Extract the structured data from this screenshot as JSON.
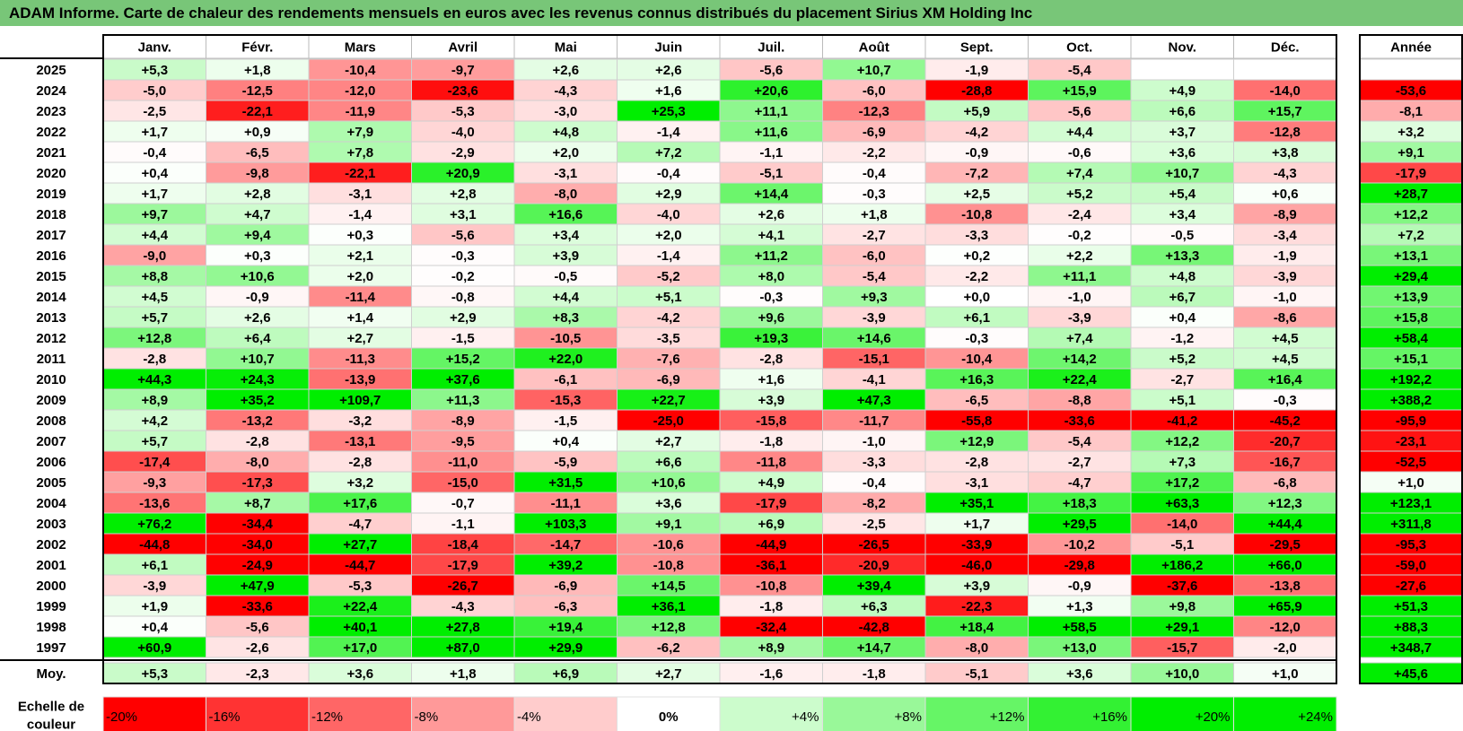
{
  "title": "ADAM Informe. Carte de chaleur des rendements mensuels en euros avec les revenus connus distribués du placement Sirius XM Holding Inc",
  "chart_data": {
    "type": "heatmap",
    "columns": [
      "Janv.",
      "Févr.",
      "Mars",
      "Avril",
      "Mai",
      "Juin",
      "Juil.",
      "Août",
      "Sept.",
      "Oct.",
      "Nov.",
      "Déc."
    ],
    "year_header": "Année",
    "rows": [
      {
        "year": "2025",
        "values": [
          "+5,3",
          "+1,8",
          "-10,4",
          "-9,7",
          "+2,6",
          "+2,6",
          "-5,6",
          "+10,7",
          "-1,9",
          "-5,4",
          "",
          ""
        ],
        "annual": ""
      },
      {
        "year": "2024",
        "values": [
          "-5,0",
          "-12,5",
          "-12,0",
          "-23,6",
          "-4,3",
          "+1,6",
          "+20,6",
          "-6,0",
          "-28,8",
          "+15,9",
          "+4,9",
          "-14,0"
        ],
        "annual": "-53,6"
      },
      {
        "year": "2023",
        "values": [
          "-2,5",
          "-22,1",
          "-11,9",
          "-5,3",
          "-3,0",
          "+25,3",
          "+11,1",
          "-12,3",
          "+5,9",
          "-5,6",
          "+6,6",
          "+15,7"
        ],
        "annual": "-8,1"
      },
      {
        "year": "2022",
        "values": [
          "+1,7",
          "+0,9",
          "+7,9",
          "-4,0",
          "+4,8",
          "-1,4",
          "+11,6",
          "-6,9",
          "-4,2",
          "+4,4",
          "+3,7",
          "-12,8"
        ],
        "annual": "+3,2"
      },
      {
        "year": "2021",
        "values": [
          "-0,4",
          "-6,5",
          "+7,8",
          "-2,9",
          "+2,0",
          "+7,2",
          "-1,1",
          "-2,2",
          "-0,9",
          "-0,6",
          "+3,6",
          "+3,8"
        ],
        "annual": "+9,1"
      },
      {
        "year": "2020",
        "values": [
          "+0,4",
          "-9,8",
          "-22,1",
          "+20,9",
          "-3,1",
          "-0,4",
          "-5,1",
          "-0,4",
          "-7,2",
          "+7,4",
          "+10,7",
          "-4,3"
        ],
        "annual": "-17,9"
      },
      {
        "year": "2019",
        "values": [
          "+1,7",
          "+2,8",
          "-3,1",
          "+2,8",
          "-8,0",
          "+2,9",
          "+14,4",
          "-0,3",
          "+2,5",
          "+5,2",
          "+5,4",
          "+0,6"
        ],
        "annual": "+28,7"
      },
      {
        "year": "2018",
        "values": [
          "+9,7",
          "+4,7",
          "-1,4",
          "+3,1",
          "+16,6",
          "-4,0",
          "+2,6",
          "+1,8",
          "-10,8",
          "-2,4",
          "+3,4",
          "-8,9"
        ],
        "annual": "+12,2"
      },
      {
        "year": "2017",
        "values": [
          "+4,4",
          "+9,4",
          "+0,3",
          "-5,6",
          "+3,4",
          "+2,0",
          "+4,1",
          "-2,7",
          "-3,3",
          "-0,2",
          "-0,5",
          "-3,4"
        ],
        "annual": "+7,2"
      },
      {
        "year": "2016",
        "values": [
          "-9,0",
          "+0,3",
          "+2,1",
          "-0,3",
          "+3,9",
          "-1,4",
          "+11,2",
          "-6,0",
          "+0,2",
          "+2,2",
          "+13,3",
          "-1,9"
        ],
        "annual": "+13,1"
      },
      {
        "year": "2015",
        "values": [
          "+8,8",
          "+10,6",
          "+2,0",
          "-0,2",
          "-0,5",
          "-5,2",
          "+8,0",
          "-5,4",
          "-2,2",
          "+11,1",
          "+4,8",
          "-3,9"
        ],
        "annual": "+29,4"
      },
      {
        "year": "2014",
        "values": [
          "+4,5",
          "-0,9",
          "-11,4",
          "-0,8",
          "+4,4",
          "+5,1",
          "-0,3",
          "+9,3",
          "+0,0",
          "-1,0",
          "+6,7",
          "-1,0"
        ],
        "annual": "+13,9"
      },
      {
        "year": "2013",
        "values": [
          "+5,7",
          "+2,6",
          "+1,4",
          "+2,9",
          "+8,3",
          "-4,2",
          "+9,6",
          "-3,9",
          "+6,1",
          "-3,9",
          "+0,4",
          "-8,6"
        ],
        "annual": "+15,8"
      },
      {
        "year": "2012",
        "values": [
          "+12,8",
          "+6,4",
          "+2,7",
          "-1,5",
          "-10,5",
          "-3,5",
          "+19,3",
          "+14,6",
          "-0,3",
          "+7,4",
          "-1,2",
          "+4,5"
        ],
        "annual": "+58,4"
      },
      {
        "year": "2011",
        "values": [
          "-2,8",
          "+10,7",
          "-11,3",
          "+15,2",
          "+22,0",
          "-7,6",
          "-2,8",
          "-15,1",
          "-10,4",
          "+14,2",
          "+5,2",
          "+4,5"
        ],
        "annual": "+15,1"
      },
      {
        "year": "2010",
        "values": [
          "+44,3",
          "+24,3",
          "-13,9",
          "+37,6",
          "-6,1",
          "-6,9",
          "+1,6",
          "-4,1",
          "+16,3",
          "+22,4",
          "-2,7",
          "+16,4"
        ],
        "annual": "+192,2"
      },
      {
        "year": "2009",
        "values": [
          "+8,9",
          "+35,2",
          "+109,7",
          "+11,3",
          "-15,3",
          "+22,7",
          "+3,9",
          "+47,3",
          "-6,5",
          "-8,8",
          "+5,1",
          "-0,3"
        ],
        "annual": "+388,2"
      },
      {
        "year": "2008",
        "values": [
          "+4,2",
          "-13,2",
          "-3,2",
          "-8,9",
          "-1,5",
          "-25,0",
          "-15,8",
          "-11,7",
          "-55,8",
          "-33,6",
          "-41,2",
          "-45,2"
        ],
        "annual": "-95,9"
      },
      {
        "year": "2007",
        "values": [
          "+5,7",
          "-2,8",
          "-13,1",
          "-9,5",
          "+0,4",
          "+2,7",
          "-1,8",
          "-1,0",
          "+12,9",
          "-5,4",
          "+12,2",
          "-20,7"
        ],
        "annual": "-23,1"
      },
      {
        "year": "2006",
        "values": [
          "-17,4",
          "-8,0",
          "-2,8",
          "-11,0",
          "-5,9",
          "+6,6",
          "-11,8",
          "-3,3",
          "-2,8",
          "-2,7",
          "+7,3",
          "-16,7"
        ],
        "annual": "-52,5"
      },
      {
        "year": "2005",
        "values": [
          "-9,3",
          "-17,3",
          "+3,2",
          "-15,0",
          "+31,5",
          "+10,6",
          "+4,9",
          "-0,4",
          "-3,1",
          "-4,7",
          "+17,2",
          "-6,8"
        ],
        "annual": "+1,0"
      },
      {
        "year": "2004",
        "values": [
          "-13,6",
          "+8,7",
          "+17,6",
          "-0,7",
          "-11,1",
          "+3,6",
          "-17,9",
          "-8,2",
          "+35,1",
          "+18,3",
          "+63,3",
          "+12,3"
        ],
        "annual": "+123,1"
      },
      {
        "year": "2003",
        "values": [
          "+76,2",
          "-34,4",
          "-4,7",
          "-1,1",
          "+103,3",
          "+9,1",
          "+6,9",
          "-2,5",
          "+1,7",
          "+29,5",
          "-14,0",
          "+44,4"
        ],
        "annual": "+311,8"
      },
      {
        "year": "2002",
        "values": [
          "-44,8",
          "-34,0",
          "+27,7",
          "-18,4",
          "-14,7",
          "-10,6",
          "-44,9",
          "-26,5",
          "-33,9",
          "-10,2",
          "-5,1",
          "-29,5"
        ],
        "annual": "-95,3"
      },
      {
        "year": "2001",
        "values": [
          "+6,1",
          "-24,9",
          "-44,7",
          "-17,9",
          "+39,2",
          "-10,8",
          "-36,1",
          "-20,9",
          "-46,0",
          "-29,8",
          "+186,2",
          "+66,0"
        ],
        "annual": "-59,0"
      },
      {
        "year": "2000",
        "values": [
          "-3,9",
          "+47,9",
          "-5,3",
          "-26,7",
          "-6,9",
          "+14,5",
          "-10,8",
          "+39,4",
          "+3,9",
          "-0,9",
          "-37,6",
          "-13,8"
        ],
        "annual": "-27,6"
      },
      {
        "year": "1999",
        "values": [
          "+1,9",
          "-33,6",
          "+22,4",
          "-4,3",
          "-6,3",
          "+36,1",
          "-1,8",
          "+6,3",
          "-22,3",
          "+1,3",
          "+9,8",
          "+65,9"
        ],
        "annual": "+51,3"
      },
      {
        "year": "1998",
        "values": [
          "+0,4",
          "-5,6",
          "+40,1",
          "+27,8",
          "+19,4",
          "+12,8",
          "-32,4",
          "-42,8",
          "+18,4",
          "+58,5",
          "+29,1",
          "-12,0"
        ],
        "annual": "+88,3"
      },
      {
        "year": "1997",
        "values": [
          "+60,9",
          "-2,6",
          "+17,0",
          "+87,0",
          "+29,9",
          "-6,2",
          "+8,9",
          "+14,7",
          "-8,0",
          "+13,0",
          "-15,7",
          "-2,0"
        ],
        "annual": "+348,7"
      }
    ],
    "average": {
      "label": "Moy.",
      "values": [
        "+5,3",
        "-2,3",
        "+3,6",
        "+1,8",
        "+6,9",
        "+2,7",
        "-1,6",
        "-1,8",
        "-5,1",
        "+3,6",
        "+10,0",
        "+1,0"
      ],
      "annual": "+45,6"
    },
    "scale": {
      "label_line1": "Echelle de",
      "label_line2": "couleur",
      "steps": [
        "-20%",
        "-16%",
        "-12%",
        "-8%",
        "-4%",
        "0%",
        "+4%",
        "+8%",
        "+12%",
        "+16%",
        "+20%",
        "+24%"
      ]
    },
    "colors": {
      "negative_max": "#ff0000",
      "positive_max": "#00ee00",
      "neutral": "#ffffff",
      "title_bar": "#78c678"
    }
  }
}
